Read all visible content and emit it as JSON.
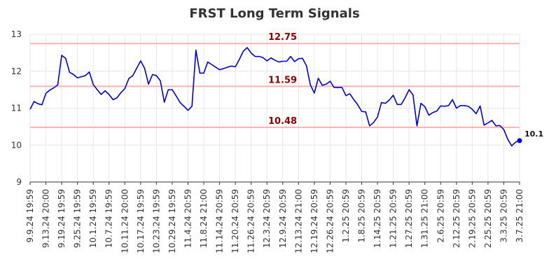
{
  "chart_data": {
    "type": "line",
    "title": "FRST Long Term Signals",
    "xlabel": "",
    "ylabel": "",
    "ylim": [
      9,
      13
    ],
    "yticks": [
      "9",
      "10",
      "11",
      "12",
      "13"
    ],
    "grid": true,
    "line_color": "#0000cc",
    "hline_color": "#ffb3b3",
    "hline_label_color": "#8b0000",
    "x_tick_labels": [
      "9.9.24 19:59",
      "9.13.24 20:00",
      "9.19.24 19:59",
      "9.25.24 19:59",
      "10.1.24 19:59",
      "10.7.24 19:59",
      "10.11.24 20:00",
      "10.17.24 19:59",
      "10.23.24 19:59",
      "10.29.24 19:59",
      "11.4.24 20:59",
      "11.8.24 21:00",
      "11.14.24 20:59",
      "11.20.24 20:59",
      "11.26.24 20:59",
      "12.3.24 20:59",
      "12.9.24 20:59",
      "12.13.24 21:00",
      "12.19.24 20:59",
      "12.26.24 20:59",
      "1.2.25 20:59",
      "1.8.25 20:59",
      "1.14.25 20:59",
      "1.21.25 20:59",
      "1.27.25 20:59",
      "1.31.25 21:00",
      "2.6.25 20:59",
      "2.12.25 20:59",
      "2.19.25 20:59",
      "2.25.25 20:59",
      "3.3.25 20:59",
      "3.7.25 21:00"
    ],
    "x_tick_every": 4,
    "hlines": [
      {
        "value": 12.75,
        "label": "12.75"
      },
      {
        "value": 11.59,
        "label": "11.59"
      },
      {
        "value": 10.48,
        "label": "10.48"
      }
    ],
    "last_value_label": "10.1",
    "series": [
      {
        "values": [
          10.97,
          11.18,
          11.12,
          11.09,
          11.4,
          11.49,
          11.55,
          11.63,
          12.43,
          12.35,
          11.97,
          11.91,
          11.82,
          11.85,
          11.88,
          11.98,
          11.64,
          11.5,
          11.37,
          11.47,
          11.37,
          11.23,
          11.28,
          11.42,
          11.53,
          11.8,
          11.88,
          12.08,
          12.28,
          12.08,
          11.65,
          11.91,
          11.88,
          11.74,
          11.16,
          11.5,
          11.5,
          11.33,
          11.15,
          11.05,
          10.94,
          11.05,
          12.57,
          11.95,
          11.95,
          12.25,
          12.18,
          12.11,
          12.04,
          12.07,
          12.11,
          12.14,
          12.12,
          12.32,
          12.54,
          12.64,
          12.49,
          12.4,
          12.4,
          12.37,
          12.28,
          12.36,
          12.3,
          12.25,
          12.27,
          12.27,
          12.4,
          12.26,
          12.34,
          12.35,
          12.15,
          11.63,
          11.41,
          11.81,
          11.62,
          11.65,
          11.73,
          11.56,
          11.56,
          11.56,
          11.34,
          11.39,
          11.23,
          11.09,
          10.91,
          10.9,
          10.52,
          10.61,
          10.76,
          11.15,
          11.13,
          11.22,
          11.35,
          11.1,
          11.1,
          11.28,
          11.5,
          11.36,
          10.52,
          11.13,
          11.04,
          10.81,
          10.88,
          10.92,
          11.06,
          11.05,
          11.07,
          11.23,
          11.0,
          11.07,
          11.07,
          11.05,
          10.97,
          10.85,
          11.06,
          10.54,
          10.6,
          10.67,
          10.52,
          10.53,
          10.42,
          10.16,
          9.98,
          10.08,
          10.12
        ]
      }
    ]
  }
}
